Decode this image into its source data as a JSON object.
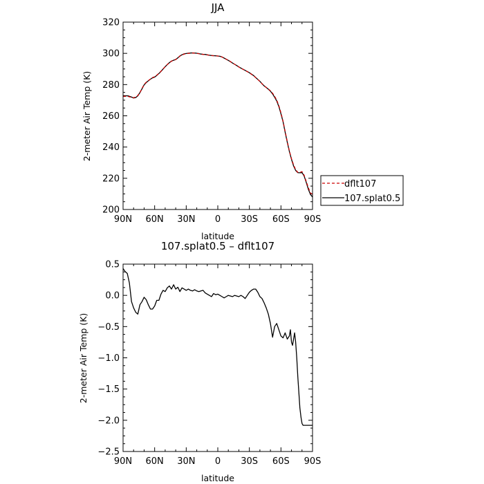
{
  "chart_data": [
    {
      "type": "line",
      "title": "JJA",
      "xlabel": "latitude",
      "ylabel": "2-meter Air Temp (K)",
      "x_unit": "degrees latitude (positive = N, negative = S)",
      "xlim": [
        90,
        -90
      ],
      "ylim": [
        200,
        320
      ],
      "x_tick_values": [
        90,
        60,
        30,
        0,
        -30,
        -60,
        -90
      ],
      "x_tick_labels": [
        "90N",
        "60N",
        "30N",
        "0",
        "30S",
        "60S",
        "90S"
      ],
      "y_tick_values": [
        200,
        220,
        240,
        260,
        280,
        300,
        320
      ],
      "y_tick_labels": [
        "200",
        "220",
        "240",
        "260",
        "280",
        "300",
        "320"
      ],
      "grid": false,
      "legend_position": "outside-right",
      "series": [
        {
          "name": "dflt107",
          "color": "#cc0000",
          "dash": "dashed",
          "x": [
            90,
            88,
            85,
            82,
            80,
            78,
            76,
            74,
            72,
            70,
            68,
            66,
            64,
            62,
            60,
            58,
            56,
            54,
            52,
            50,
            48,
            46,
            44,
            42,
            40,
            38,
            36,
            34,
            32,
            30,
            28,
            26,
            24,
            22,
            20,
            18,
            16,
            14,
            12,
            10,
            8,
            6,
            4,
            2,
            0,
            -2,
            -4,
            -6,
            -8,
            -10,
            -12,
            -14,
            -16,
            -18,
            -20,
            -22,
            -24,
            -26,
            -28,
            -30,
            -32,
            -34,
            -36,
            -38,
            -40,
            -42,
            -44,
            -46,
            -48,
            -50,
            -52,
            -54,
            -56,
            -58,
            -60,
            -62,
            -64,
            -66,
            -68,
            -70,
            -72,
            -74,
            -76,
            -78,
            -80,
            -82,
            -84,
            -86,
            -88,
            -90
          ],
          "y": [
            272.5,
            272.5,
            272.4,
            271.8,
            271.6,
            272.0,
            273.0,
            275.0,
            277.5,
            280.0,
            281.5,
            282.5,
            283.5,
            284.5,
            285.0,
            286.0,
            287.2,
            288.5,
            290.0,
            291.5,
            292.8,
            294.0,
            295.0,
            295.5,
            296.0,
            297.0,
            298.2,
            299.0,
            299.5,
            299.8,
            300.0,
            300.1,
            300.2,
            300.1,
            300.0,
            299.8,
            299.5,
            299.3,
            299.2,
            299.0,
            298.8,
            298.6,
            298.5,
            298.4,
            298.3,
            298.1,
            297.7,
            297.0,
            296.2,
            295.5,
            294.7,
            293.8,
            293.0,
            292.2,
            291.3,
            290.5,
            289.8,
            289.0,
            288.3,
            287.5,
            286.6,
            285.7,
            284.5,
            283.3,
            282.0,
            280.6,
            279.2,
            278.2,
            277.2,
            276.0,
            274.5,
            272.5,
            270.0,
            266.5,
            262.0,
            256.5,
            250.0,
            243.5,
            237.5,
            232.5,
            228.5,
            225.5,
            223.8,
            223.8,
            224.2,
            222.0,
            218.0,
            214.0,
            210.5,
            209.8
          ]
        },
        {
          "name": "107.splat0.5",
          "color": "#000000",
          "dash": "solid",
          "x": [
            90,
            88,
            85,
            82,
            80,
            78,
            76,
            74,
            72,
            70,
            68,
            66,
            64,
            62,
            60,
            58,
            56,
            54,
            52,
            50,
            48,
            46,
            44,
            42,
            40,
            38,
            36,
            34,
            32,
            30,
            28,
            26,
            24,
            22,
            20,
            18,
            16,
            14,
            12,
            10,
            8,
            6,
            4,
            2,
            0,
            -2,
            -4,
            -6,
            -8,
            -10,
            -12,
            -14,
            -16,
            -18,
            -20,
            -22,
            -24,
            -26,
            -28,
            -30,
            -32,
            -34,
            -36,
            -38,
            -40,
            -42,
            -44,
            -46,
            -48,
            -50,
            -52,
            -54,
            -56,
            -58,
            -60,
            -62,
            -64,
            -66,
            -68,
            -70,
            -72,
            -74,
            -76,
            -78,
            -80,
            -82,
            -84,
            -86,
            -88,
            -90
          ],
          "y": [
            272.9,
            272.85,
            272.75,
            272.0,
            271.4,
            271.7,
            272.8,
            274.9,
            277.3,
            279.8,
            281.3,
            282.4,
            283.45,
            284.3,
            284.8,
            285.85,
            287.1,
            288.45,
            289.93,
            291.48,
            292.83,
            294.05,
            295.05,
            295.6,
            296.1,
            297.1,
            298.33,
            299.1,
            299.66,
            299.88,
            300.1,
            300.2,
            300.28,
            300.2,
            300.09,
            299.87,
            299.56,
            299.39,
            299.3,
            299.05,
            298.8,
            298.63,
            298.53,
            298.44,
            298.31,
            298.11,
            297.7,
            296.98,
            296.21,
            295.5,
            294.69,
            293.8,
            293.0,
            292.19,
            291.29,
            290.49,
            289.8,
            289.08,
            288.38,
            287.59,
            286.7,
            285.78,
            284.55,
            283.35,
            282.03,
            280.6,
            279.17,
            278.15,
            277.05,
            275.75,
            274.05,
            271.9,
            269.5,
            265.95,
            261.35,
            256.2,
            249.45,
            243.1,
            237.2,
            232.1,
            227.9,
            225.0,
            223.6,
            223.5,
            223.6,
            221.5,
            217.4,
            213.0,
            209.6,
            208.0
          ]
        }
      ]
    },
    {
      "type": "line",
      "title": "107.splat0.5 – dflt107",
      "xlabel": "latitude",
      "ylabel": "2-meter Air Temp (K)",
      "x_unit": "degrees latitude (positive = N, negative = S)",
      "xlim": [
        90,
        -90
      ],
      "ylim": [
        -2.5,
        0.5
      ],
      "x_tick_values": [
        90,
        60,
        30,
        0,
        -30,
        -60,
        -90
      ],
      "x_tick_labels": [
        "90N",
        "60N",
        "30N",
        "0",
        "30S",
        "60S",
        "90S"
      ],
      "y_tick_values": [
        -2.5,
        -2.0,
        -1.5,
        -1.0,
        -0.5,
        0.0,
        0.5
      ],
      "y_tick_labels": [
        "−2.5",
        "−2.0",
        "−1.5",
        "−1.0",
        "−0.5",
        "0.0",
        "0.5"
      ],
      "grid": false,
      "series": [
        {
          "color": "#000000",
          "dash": "solid",
          "x": [
            90,
            88,
            86,
            84,
            82,
            80,
            78,
            76,
            74,
            72,
            70,
            68,
            66,
            64,
            62,
            60,
            58,
            56,
            54,
            52,
            50,
            48,
            46,
            44,
            42,
            40,
            38,
            36,
            34,
            32,
            30,
            28,
            26,
            24,
            22,
            20,
            18,
            16,
            14,
            12,
            10,
            8,
            6,
            4,
            2,
            0,
            -2,
            -4,
            -6,
            -8,
            -10,
            -12,
            -14,
            -16,
            -18,
            -20,
            -22,
            -24,
            -26,
            -28,
            -30,
            -32,
            -34,
            -36,
            -38,
            -40,
            -42,
            -44,
            -46,
            -48,
            -50,
            -52,
            -54,
            -56,
            -58,
            -60,
            -62,
            -64,
            -66,
            -68,
            -69,
            -70,
            -71,
            -72,
            -73,
            -74,
            -75,
            -76,
            -77,
            -78,
            -79,
            -80,
            -81,
            -82,
            -83,
            -84,
            -85,
            -86,
            -87,
            -88,
            -89,
            -90
          ],
          "y": [
            0.43,
            0.38,
            0.35,
            0.2,
            -0.1,
            -0.2,
            -0.27,
            -0.3,
            -0.15,
            -0.1,
            -0.03,
            -0.07,
            -0.15,
            -0.22,
            -0.22,
            -0.17,
            -0.08,
            -0.08,
            0.02,
            0.08,
            0.06,
            0.12,
            0.15,
            0.1,
            0.17,
            0.1,
            0.13,
            0.06,
            0.12,
            0.1,
            0.08,
            0.1,
            0.08,
            0.07,
            0.09,
            0.07,
            0.06,
            0.07,
            0.08,
            0.04,
            0.02,
            0.0,
            -0.02,
            0.03,
            0.01,
            0.02,
            0.0,
            -0.02,
            -0.04,
            -0.02,
            0.0,
            -0.01,
            -0.02,
            0.0,
            -0.01,
            -0.02,
            0.0,
            -0.02,
            -0.05,
            0.0,
            0.05,
            0.08,
            0.1,
            0.1,
            0.05,
            -0.02,
            -0.05,
            -0.12,
            -0.2,
            -0.3,
            -0.45,
            -0.67,
            -0.5,
            -0.45,
            -0.55,
            -0.65,
            -0.68,
            -0.6,
            -0.7,
            -0.65,
            -0.55,
            -0.75,
            -0.8,
            -0.7,
            -0.6,
            -0.75,
            -1.0,
            -1.3,
            -1.55,
            -1.8,
            -1.95,
            -2.05,
            -2.08,
            -2.08,
            -2.08,
            -2.08,
            -2.08,
            -2.08,
            -2.08,
            -2.08,
            -2.08,
            -2.08
          ]
        }
      ]
    }
  ]
}
